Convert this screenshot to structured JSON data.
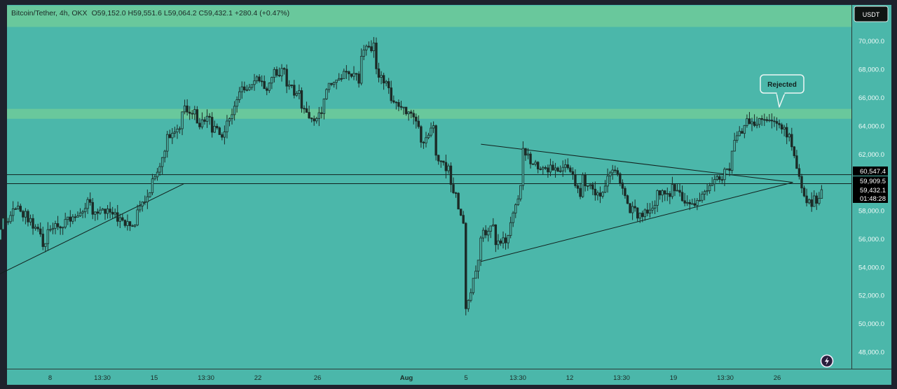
{
  "header": {
    "symbol": "Bitcoin/Tether, 4h, OKX",
    "ohlc": "O59,152.0 H59,551.6 L59,064.2 C59,432.1 +280.4 (+0.47%)"
  },
  "currency_button": "USDT",
  "annotation": {
    "label": "Rejected"
  },
  "badges": {
    "upper_level": "60,547.4",
    "lower_level": "59,909.5",
    "last_price": "59,432.1",
    "countdown": "01:48:28"
  },
  "colors": {
    "background": "#4bb7aa",
    "zone": "#6fcb9a",
    "candle": "#1c2a26",
    "lines": "#12201d",
    "badge_bg": "#000000",
    "badge_text": "#ffffff",
    "frame": "#1e222d"
  },
  "icons": {
    "quick_action": "lightning-icon"
  },
  "chart_data": {
    "type": "candlestick",
    "title": "",
    "xlabel": "",
    "ylabel": "",
    "ylim": [
      47000,
      71800
    ],
    "grid": false,
    "y_ticks": [
      "48,000.0",
      "50,000.0",
      "52,000.0",
      "54,000.0",
      "56,000.0",
      "58,000.0",
      "60,000.0",
      "62,000.0",
      "64,000.0",
      "66,000.0",
      "68,000.0",
      "70,000.0"
    ],
    "x_ticks": [
      "8",
      "13:30",
      "15",
      "13:30",
      "22",
      "26",
      "Aug",
      "5",
      "13:30",
      "12",
      "13:30",
      "19",
      "13:30",
      "26"
    ],
    "zones": [
      {
        "low": 71000,
        "high": 72500
      },
      {
        "low": 64500,
        "high": 65200
      }
    ],
    "horizontal_levels": [
      60547.4,
      59909.5
    ],
    "trendlines": [
      {
        "from": [
          "Jul 4",
          53200
        ],
        "to": [
          "Jul 17",
          59900
        ]
      },
      {
        "from": [
          "Aug 6",
          62700
        ],
        "to": [
          "Aug 27",
          60000
        ]
      },
      {
        "from": [
          "Aug 6",
          54400
        ],
        "to": [
          "Aug 27",
          60000
        ]
      }
    ],
    "series_anchors": [
      [
        "Jul 4",
        57500
      ],
      [
        "Jul 4",
        53800
      ],
      [
        "Jul 5",
        57200
      ],
      [
        "Jul 6",
        58200
      ],
      [
        "Jul 7",
        57100
      ],
      [
        "Jul 8",
        55200
      ],
      [
        "Jul 8",
        56400
      ],
      [
        "Jul 10",
        57800
      ],
      [
        "Jul 11",
        58800
      ],
      [
        "Jul 11",
        57800
      ],
      [
        "Jul 12",
        58100
      ],
      [
        "Jul 13",
        57200
      ],
      [
        "Jul 14",
        57100
      ],
      [
        "Jul 14",
        58000
      ],
      [
        "Jul 15",
        59200
      ],
      [
        "Jul 15",
        60100
      ],
      [
        "Jul 16",
        62500
      ],
      [
        "Jul 16",
        63200
      ],
      [
        "Jul 17",
        64000
      ],
      [
        "Jul 17",
        65300
      ],
      [
        "Jul 18",
        64800
      ],
      [
        "Jul 18",
        64100
      ],
      [
        "Jul 19",
        64500
      ],
      [
        "Jul 19",
        63800
      ],
      [
        "Jul 20",
        63400
      ],
      [
        "Jul 20",
        63900
      ],
      [
        "Jul 21",
        66600
      ],
      [
        "Jul 22",
        67300
      ],
      [
        "Jul 23",
        66700
      ],
      [
        "Jul 23",
        67700
      ],
      [
        "Jul 24",
        67900
      ],
      [
        "Jul 24",
        66900
      ],
      [
        "Jul 25",
        66200
      ],
      [
        "Jul 25",
        65400
      ],
      [
        "Jul 26",
        64500
      ],
      [
        "Jul 26",
        63900
      ],
      [
        "Jul 27",
        66900
      ],
      [
        "Jul 28",
        67800
      ],
      [
        "Jul 28",
        68200
      ],
      [
        "Jul 29",
        67200
      ],
      [
        "Jul 29",
        69000
      ],
      [
        "Jul 30",
        69700
      ],
      [
        "Jul 30",
        68200
      ],
      [
        "Jul 31",
        66500
      ],
      [
        "Jul 31",
        66100
      ],
      [
        "Aug 1",
        65300
      ],
      [
        "Aug 2",
        64100
      ],
      [
        "Aug 2",
        62600
      ],
      [
        "Aug 3",
        63800
      ],
      [
        "Aug 3",
        62000
      ],
      [
        "Aug 4",
        60900
      ],
      [
        "Aug 4",
        60400
      ],
      [
        "Aug 5",
        57300
      ],
      [
        "Aug 5",
        51400
      ],
      [
        "Aug 5",
        50200
      ],
      [
        "Aug 6",
        54300
      ],
      [
        "Aug 6",
        56300
      ],
      [
        "Aug 7",
        56900
      ],
      [
        "Aug 7",
        55800
      ],
      [
        "Aug 8",
        56100
      ],
      [
        "Aug 8",
        56700
      ],
      [
        "Aug 9",
        60100
      ],
      [
        "Aug 9",
        62200
      ],
      [
        "Aug 10",
        61100
      ],
      [
        "Aug 10",
        60600
      ],
      [
        "Aug 11",
        61200
      ],
      [
        "Aug 12",
        60900
      ],
      [
        "Aug 13",
        59000
      ],
      [
        "Aug 13",
        60300
      ],
      [
        "Aug 14",
        59000
      ],
      [
        "Aug 15",
        60600
      ],
      [
        "Aug 15",
        61300
      ],
      [
        "Aug 16",
        58800
      ],
      [
        "Aug 16",
        58200
      ],
      [
        "Aug 17",
        57600
      ],
      [
        "Aug 18",
        58500
      ],
      [
        "Aug 18",
        59400
      ],
      [
        "Aug 19",
        58700
      ],
      [
        "Aug 19",
        59800
      ],
      [
        "Aug 20",
        58700
      ],
      [
        "Aug 21",
        58600
      ],
      [
        "Aug 21",
        59200
      ],
      [
        "Aug 22",
        60200
      ],
      [
        "Aug 23",
        60900
      ],
      [
        "Aug 23",
        62400
      ],
      [
        "Aug 24",
        64000
      ],
      [
        "Aug 24",
        64200
      ],
      [
        "Aug 25",
        64300
      ],
      [
        "Aug 25",
        64100
      ],
      [
        "Aug 26",
        64300
      ],
      [
        "Aug 26",
        63900
      ],
      [
        "Aug 27",
        63300
      ],
      [
        "Aug 27",
        62600
      ],
      [
        "Aug 28",
        59000
      ],
      [
        "Aug 28",
        58300
      ],
      [
        "Aug 29",
        59000
      ],
      [
        "Aug 29",
        59432.1
      ]
    ]
  }
}
